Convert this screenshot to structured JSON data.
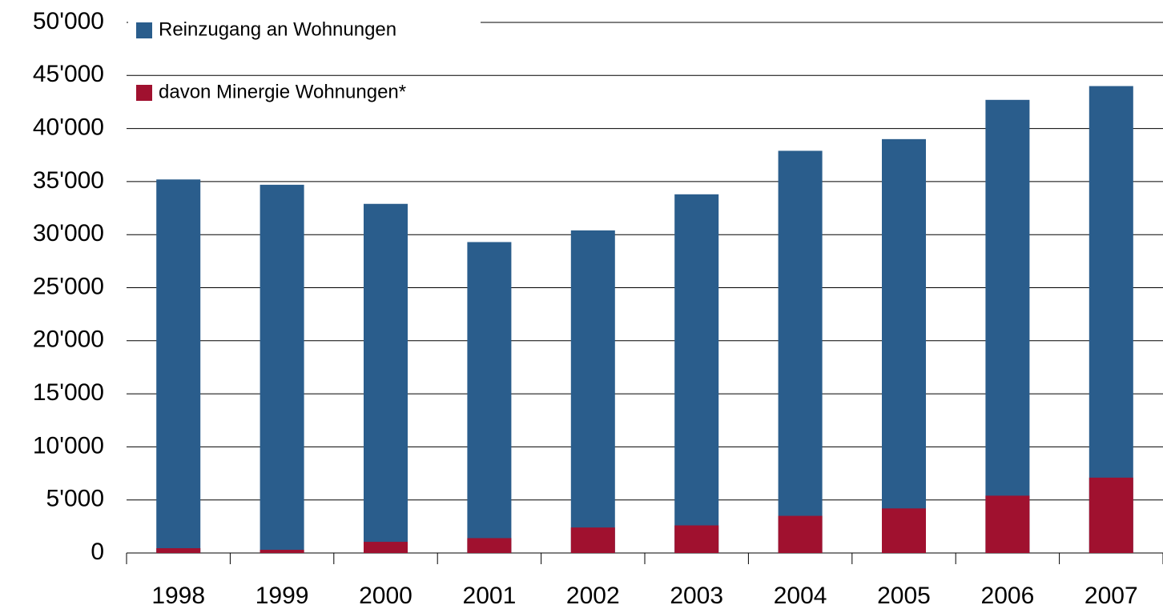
{
  "chart_data": {
    "type": "bar",
    "overlay": true,
    "categories": [
      "1998",
      "1999",
      "2000",
      "2001",
      "2002",
      "2003",
      "2004",
      "2005",
      "2006",
      "2007"
    ],
    "series": [
      {
        "name": "Reinzugang an Wohnungen",
        "color": "#2a5d8c",
        "values": [
          35200,
          34700,
          32900,
          29300,
          30400,
          33800,
          37900,
          39000,
          42700,
          44000
        ]
      },
      {
        "name": "davon Minergie Wohnungen*",
        "color": "#a0112f",
        "values": [
          450,
          300,
          1050,
          1400,
          2400,
          2600,
          3500,
          4200,
          5400,
          7100
        ]
      }
    ],
    "ylim": [
      0,
      50000
    ],
    "yticks": [
      0,
      {
        "value": 5000,
        "label": "5'000"
      },
      {
        "value": 10000,
        "label": "10'000"
      },
      {
        "value": 15000,
        "label": "15'000"
      },
      {
        "value": 20000,
        "label": "20'000"
      },
      {
        "value": 25000,
        "label": "25'000"
      },
      {
        "value": 30000,
        "label": "30'000"
      },
      {
        "value": 35000,
        "label": "35'000"
      },
      {
        "value": 40000,
        "label": "40'000"
      },
      {
        "value": 45000,
        "label": "45'000"
      },
      {
        "value": 50000,
        "label": "50'000"
      }
    ],
    "grid": true,
    "legend": "top-left"
  }
}
